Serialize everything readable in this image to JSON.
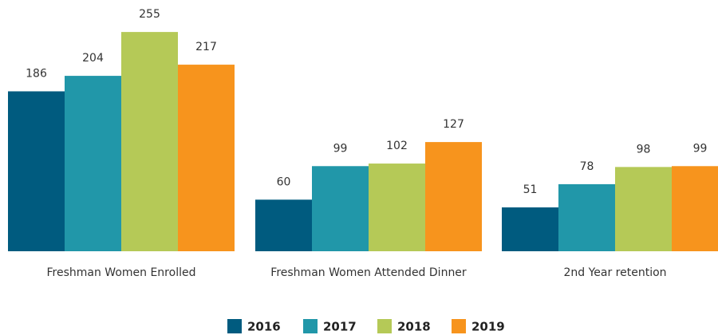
{
  "chart_data": {
    "type": "bar",
    "categories": [
      "Freshman Women Enrolled",
      "Freshman Women Attended Dinner",
      "2nd Year retention"
    ],
    "series": [
      {
        "name": "2016",
        "color": "#005b7f",
        "values": [
          186,
          60,
          51
        ]
      },
      {
        "name": "2017",
        "color": "#2197a9",
        "values": [
          204,
          99,
          78
        ]
      },
      {
        "name": "2018",
        "color": "#b5c957",
        "values": [
          255,
          102,
          98
        ]
      },
      {
        "name": "2019",
        "color": "#f7941d",
        "values": [
          217,
          127,
          99
        ]
      }
    ],
    "legend": "bottom"
  }
}
